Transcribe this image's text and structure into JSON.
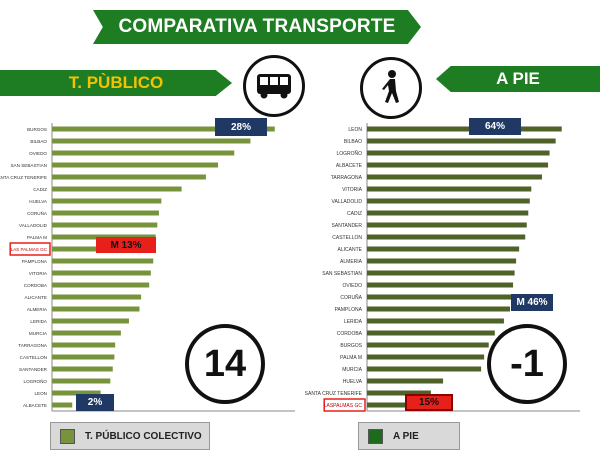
{
  "header": {
    "title": "COMPARATIVA TRANSPORTE"
  },
  "left_panel": {
    "section_label": "T. PÙBLICO",
    "icon": "bus-icon",
    "big_number": "14",
    "top_tag": "28%",
    "mid_tag": "M 13%",
    "low_tag": "2%",
    "legend_label": "T. PÚBLICO COLECTIVO",
    "highlight_city": "LAS PALMAS GC"
  },
  "right_panel": {
    "section_label": "A PIE",
    "icon": "pedestrian-icon",
    "big_number": "-1",
    "top_tag": "64%",
    "mid_tag": "M 46%",
    "low_tag": "15%",
    "legend_label": "A PIE",
    "highlight_city": "LASPALMAS GC"
  },
  "colors": {
    "brand_green": "#1e7d22",
    "bar_light": "#77933c",
    "bar_dark": "#4f6228",
    "tag_blue": "#1f3864",
    "tag_red": "#e8201b"
  },
  "chart_data": [
    {
      "type": "bar",
      "orientation": "horizontal",
      "categories": [
        "BURGOS",
        "BILBAO",
        "OVIEDO",
        "SAN SEBASTIAN",
        "SANTA CRUZ TENERIFE",
        "CADIZ",
        "HUELVA",
        "CORUÑA",
        "VALLADOLID",
        "PALMA M",
        "LAS PALMAS GC",
        "PAMPLONA",
        "VITORIA",
        "CORDOBA",
        "ALICANTE",
        "ALMERIA",
        "LERIDA",
        "MURCIA",
        "TARRAGONA",
        "CASTELLON",
        "SANTANDER",
        "LOGROÑO",
        "LEON",
        "ALBACETE"
      ],
      "values": [
        27.5,
        24.5,
        22.5,
        20.5,
        19,
        16,
        13.5,
        13.2,
        13,
        12.8,
        12.5,
        12.5,
        12.2,
        12,
        11,
        10.8,
        9.5,
        8.5,
        7.8,
        7.7,
        7.5,
        7.2,
        6,
        2.5
      ],
      "xlim": [
        0,
        30
      ],
      "xticks": [
        "0",
        "5",
        "10",
        "15",
        "20",
        "25"
      ],
      "grid": false
    },
    {
      "type": "bar",
      "orientation": "horizontal",
      "categories": [
        "LEON",
        "BILBAO",
        "LOGROÑO",
        "ALBACETE",
        "TARRAGONA",
        "VITORIA",
        "VALLADOLID",
        "CADIZ",
        "SANTANDER",
        "CASTELLON",
        "ALICANTE",
        "ALMERIA",
        "SAN SEBASTIAN",
        "OVIEDO",
        "CORUÑA",
        "PAMPLONA",
        "LERIDA",
        "CORDOBA",
        "BURGOS",
        "PALMA M",
        "MURCIA",
        "HUELVA",
        "SANTA CRUZ TENERIFE",
        "LASPALMAS GC"
      ],
      "values": [
        64,
        62,
        60,
        59.5,
        57.5,
        54,
        53.5,
        53,
        52.5,
        52,
        50,
        49,
        48.5,
        48,
        47.5,
        47,
        45,
        42,
        40,
        38.5,
        37.5,
        25,
        21,
        15
      ],
      "xlim": [
        0,
        70
      ],
      "xticks": [
        "0",
        "10",
        "20",
        "30",
        "40",
        "50",
        "60",
        "70"
      ],
      "grid": false
    }
  ]
}
